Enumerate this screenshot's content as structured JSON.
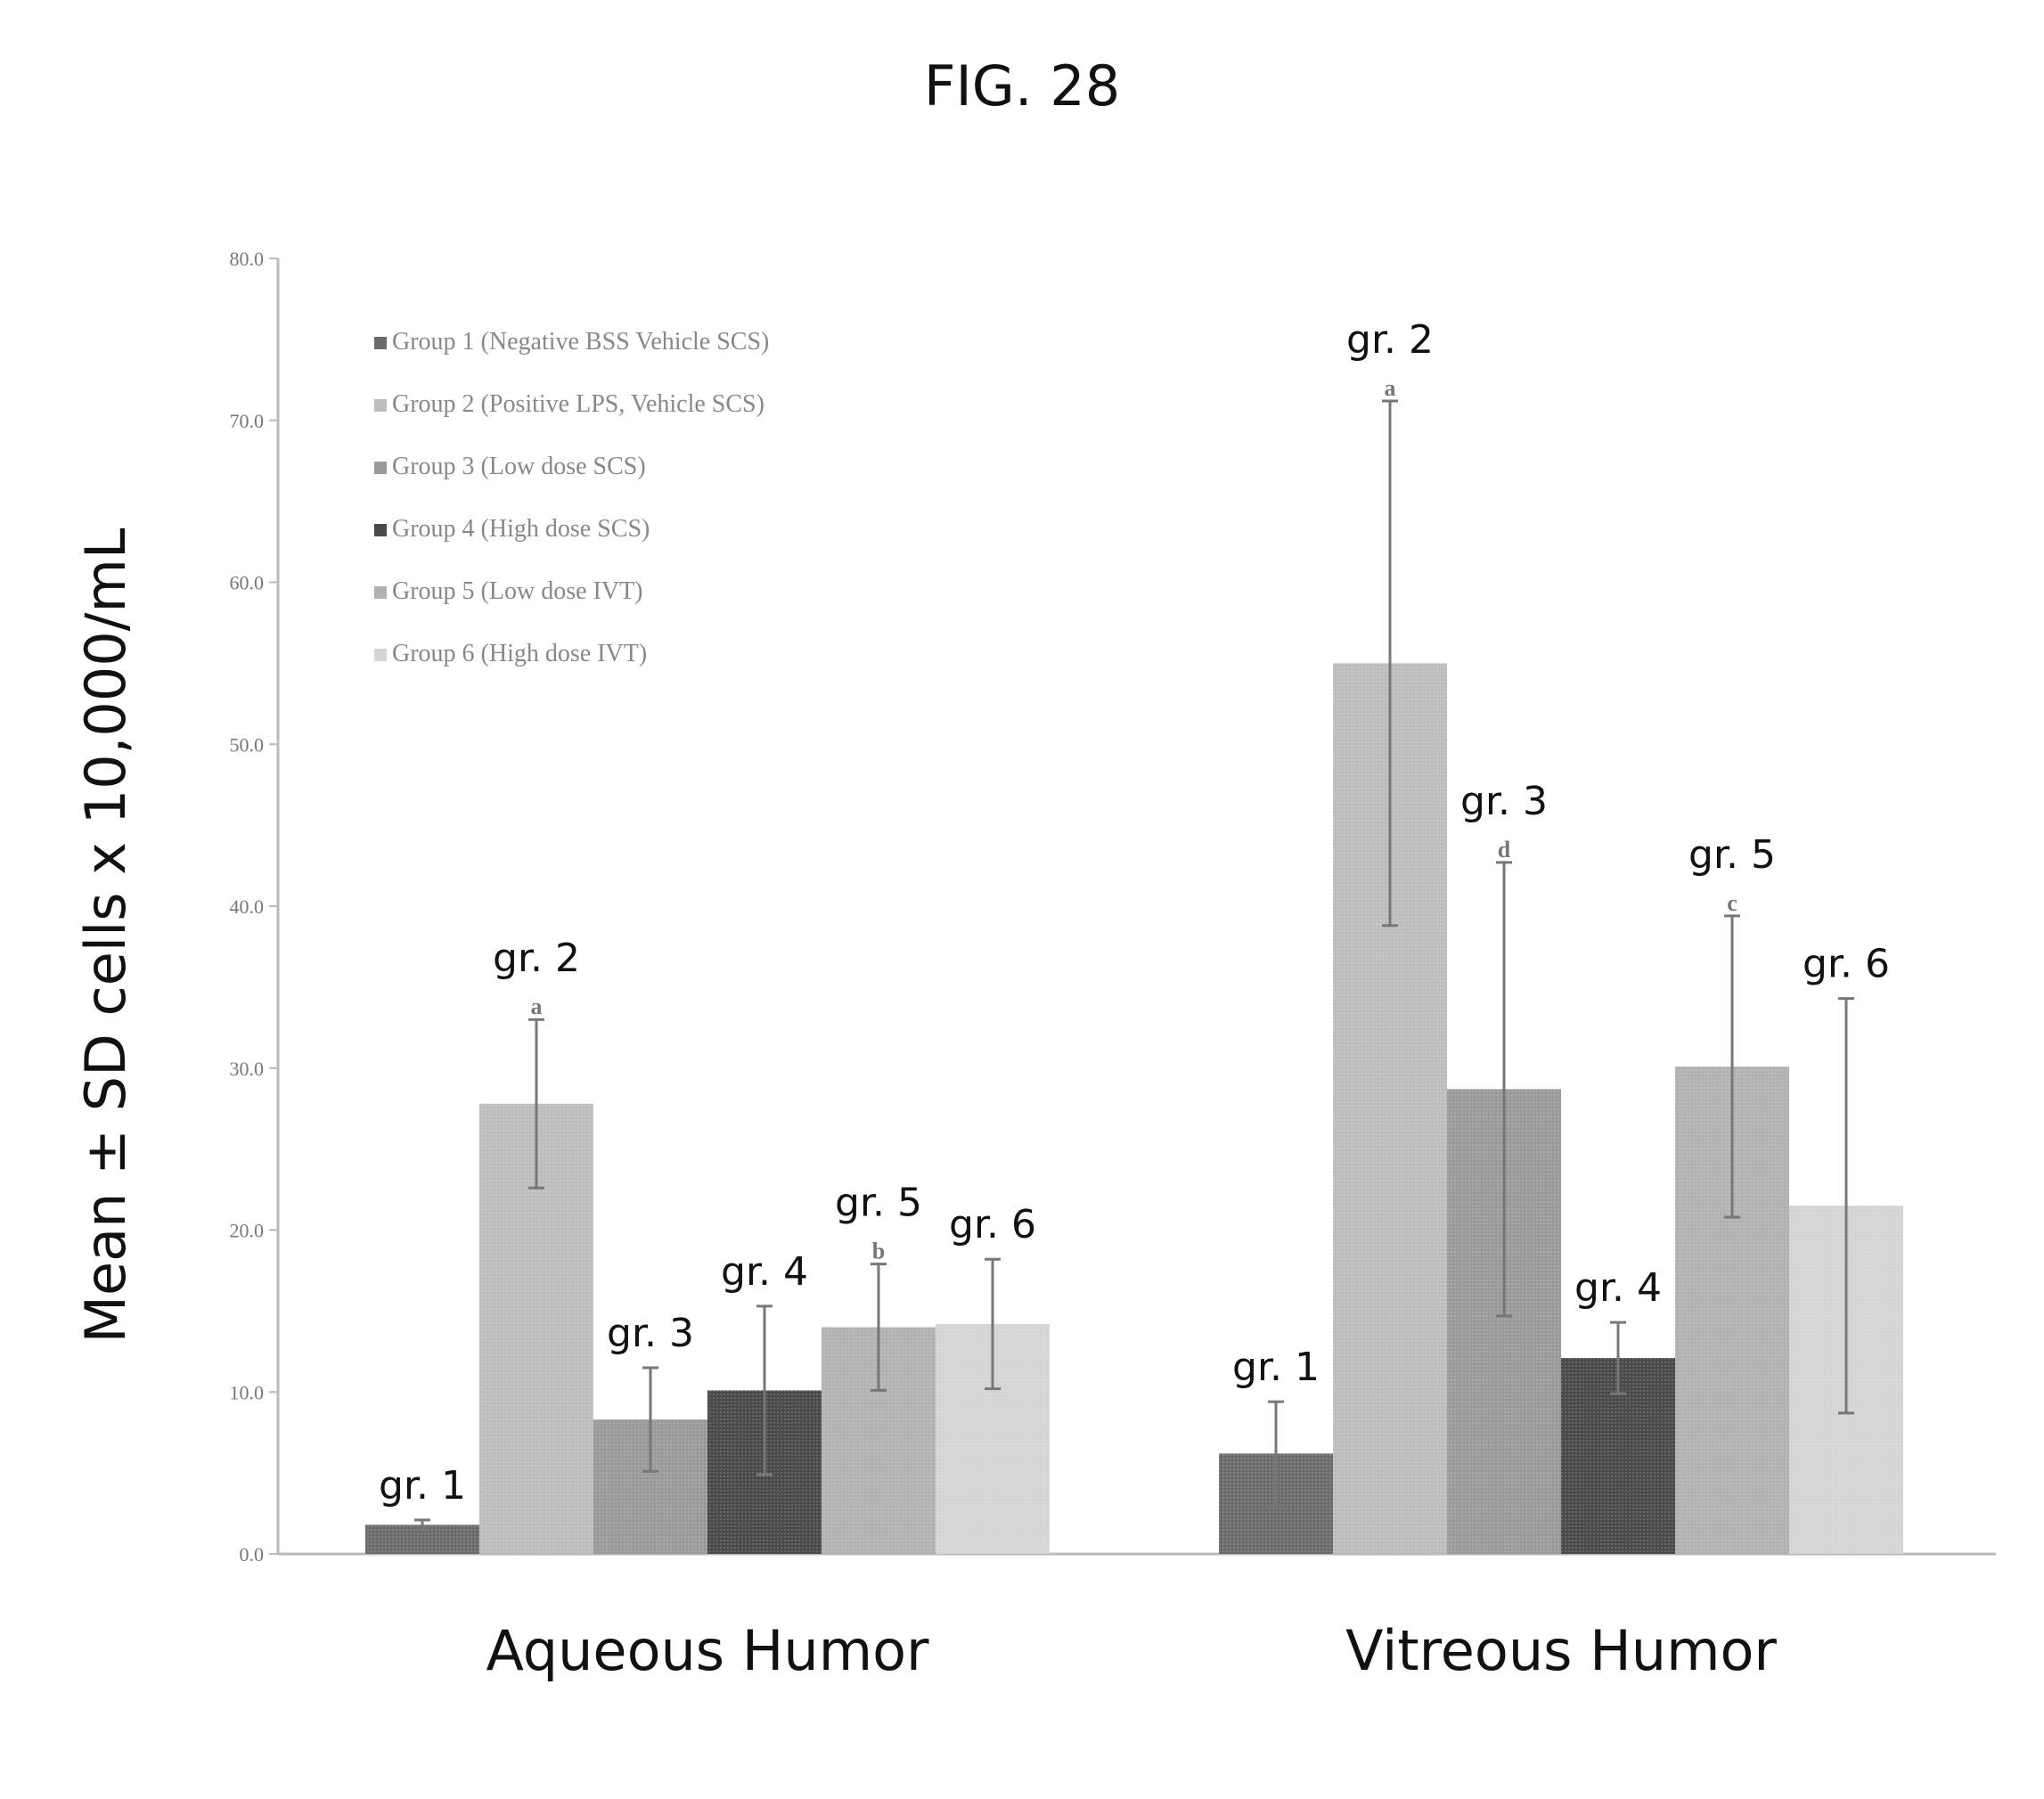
{
  "figure_title": "FIG. 28",
  "chart_data": {
    "type": "bar",
    "ylabel": "Mean ± SD cells x 10,000/mL",
    "ylim": [
      0,
      80
    ],
    "yticks": [
      "0.0",
      "10.0",
      "20.0",
      "30.0",
      "40.0",
      "50.0",
      "60.0",
      "70.0",
      "80.0"
    ],
    "legend_position": "top-left",
    "categories": [
      "Aqueous Humor",
      "Vitreous Humor"
    ],
    "series": [
      {
        "name": "Group 1 (Negative BSS Vehicle SCS)",
        "label": "gr. 1",
        "values": [
          1.8,
          6.2
        ],
        "errors": [
          0.3,
          3.2
        ],
        "sig": [
          "",
          ""
        ],
        "color": "#6b6b6b"
      },
      {
        "name": "Group 2 (Positive LPS, Vehicle SCS)",
        "label": "gr. 2",
        "values": [
          27.8,
          55.0
        ],
        "errors": [
          5.2,
          16.2
        ],
        "sig": [
          "a",
          "a"
        ],
        "color": "#bdbdbd"
      },
      {
        "name": "Group 3 (Low dose SCS)",
        "label": "gr. 3",
        "values": [
          8.3,
          28.7
        ],
        "errors": [
          3.2,
          14.0
        ],
        "sig": [
          "",
          "d"
        ],
        "color": "#9a9a9a"
      },
      {
        "name": "Group 4 (High dose SCS)",
        "label": "gr. 4",
        "values": [
          10.1,
          12.1
        ],
        "errors": [
          5.2,
          2.2
        ],
        "sig": [
          "",
          ""
        ],
        "color": "#4a4a4a"
      },
      {
        "name": "Group 5 (Low dose IVT)",
        "label": "gr. 5",
        "values": [
          14.0,
          30.1
        ],
        "errors": [
          3.9,
          9.3
        ],
        "sig": [
          "b",
          "c"
        ],
        "color": "#b2b2b2"
      },
      {
        "name": "Group 6 (High dose IVT)",
        "label": "gr. 6",
        "values": [
          14.2,
          21.5
        ],
        "errors": [
          4.0,
          12.8
        ],
        "sig": [
          "",
          ""
        ],
        "color": "#d4d4d4"
      }
    ]
  }
}
